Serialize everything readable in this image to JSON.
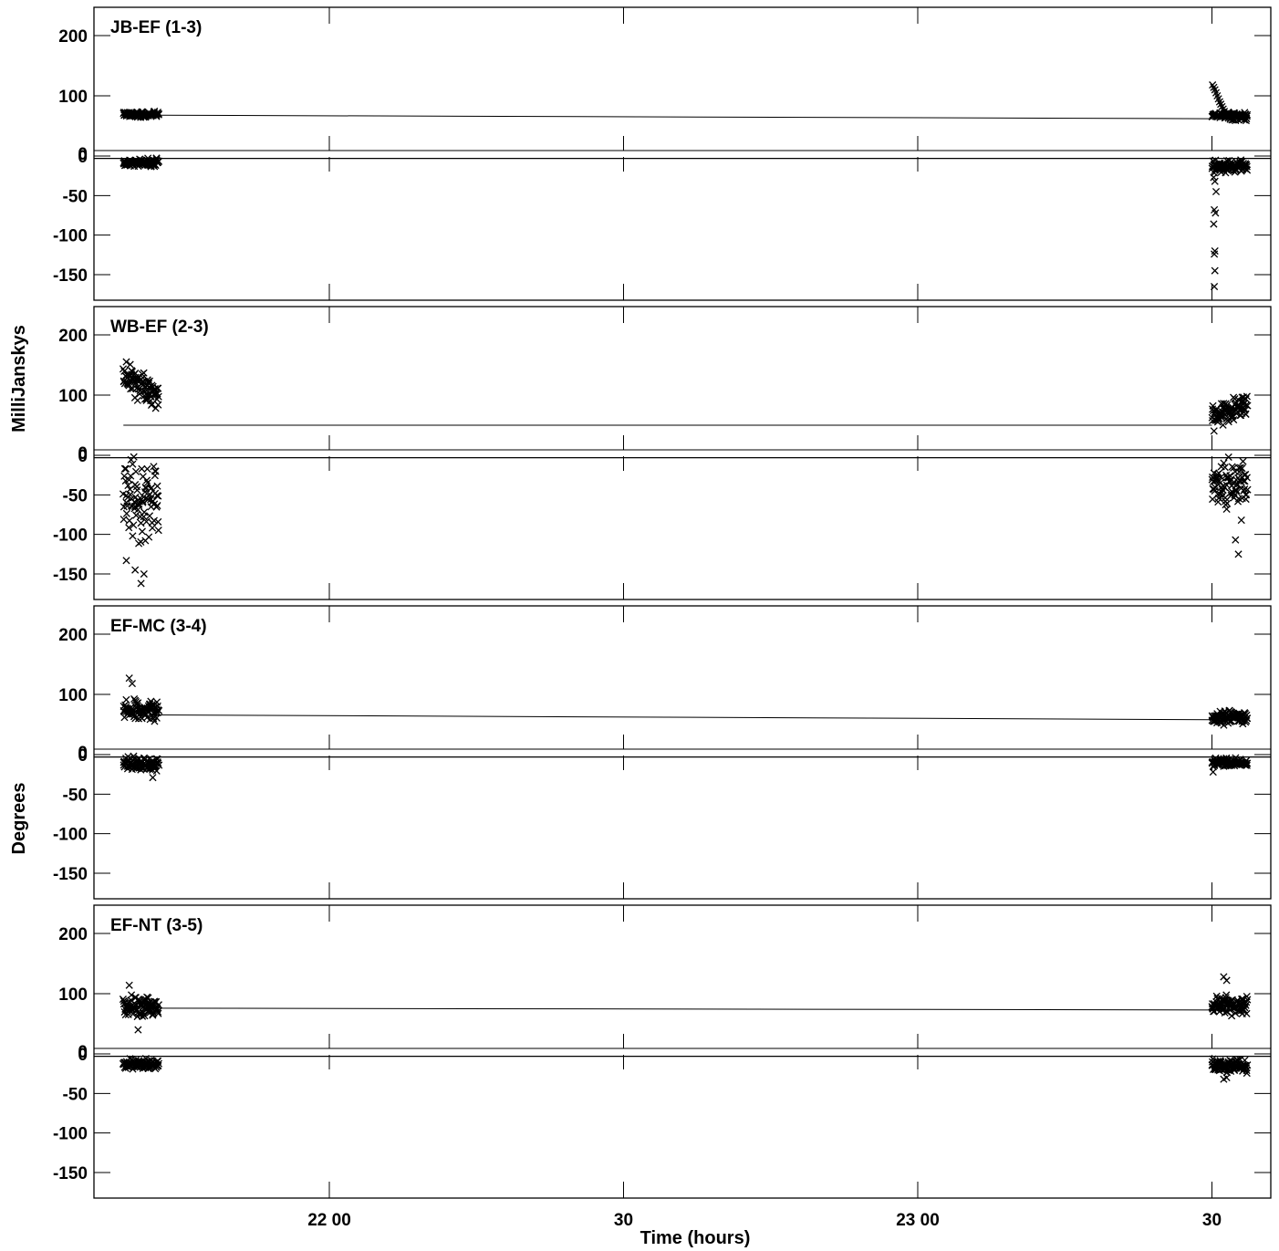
{
  "chart_data": {
    "type": "scatter",
    "x_axis": {
      "label": "Time (hours)",
      "unit": "hours",
      "range": [
        21.6,
        23.6
      ],
      "ticks": [
        {
          "value": 22.0,
          "label": "22 00"
        },
        {
          "value": 22.5,
          "label": "30"
        },
        {
          "value": 23.0,
          "label": "23 00"
        },
        {
          "value": 23.5,
          "label": "30"
        }
      ]
    },
    "y_labels": {
      "amplitude": "MilliJanskys",
      "phase": "Degrees"
    },
    "amplitude_ticks": [
      {
        "value": 0,
        "label": "0"
      },
      {
        "value": 100,
        "label": "100"
      },
      {
        "value": 200,
        "label": "200"
      }
    ],
    "phase_ticks": [
      {
        "value": 0,
        "label": "0"
      },
      {
        "value": -50,
        "label": "-50"
      },
      {
        "value": -100,
        "label": "-100"
      },
      {
        "value": -150,
        "label": "-150"
      }
    ],
    "panels": [
      {
        "label": "JB-EF (1-3)",
        "model_amplitude": [
          [
            21.65,
            68
          ],
          [
            23.5,
            62
          ]
        ],
        "model_phase": [
          [
            21.6,
            -3
          ],
          [
            23.6,
            -3
          ]
        ],
        "scan1": {
          "x": [
            21.65,
            21.71
          ],
          "amp": {
            "mean": 69,
            "spread": 4,
            "trend": 0
          },
          "phase": {
            "mean": -9,
            "spread": 4,
            "extra": []
          }
        },
        "scan2": {
          "x": [
            23.5,
            23.56
          ],
          "amp": {
            "mean": 68,
            "spread": 4,
            "trend": 0
          },
          "amp_extra": [
            [
              23.501,
              118
            ],
            [
              23.503,
              114
            ],
            [
              23.505,
              110
            ],
            [
              23.507,
              105
            ],
            [
              23.509,
              100
            ],
            [
              23.511,
              95
            ],
            [
              23.513,
              90
            ],
            [
              23.515,
              86
            ],
            [
              23.517,
              82
            ],
            [
              23.519,
              78
            ],
            [
              23.521,
              74
            ],
            [
              23.523,
              70
            ],
            [
              23.525,
              66
            ],
            [
              23.528,
              63
            ],
            [
              23.531,
              61
            ],
            [
              23.534,
              60
            ],
            [
              23.537,
              60
            ],
            [
              23.54,
              59
            ],
            [
              23.545,
              60
            ],
            [
              23.55,
              61
            ],
            [
              23.555,
              60
            ],
            [
              23.558,
              59
            ]
          ],
          "phase": {
            "mean": -13,
            "spread": 6,
            "extra": [
              [
                23.503,
                -27
              ],
              [
                23.505,
                -32
              ],
              [
                23.507,
                -45
              ],
              [
                23.504,
                -68
              ],
              [
                23.506,
                -72
              ],
              [
                23.503,
                -86
              ],
              [
                23.505,
                -120
              ],
              [
                23.504,
                -124
              ],
              [
                23.505,
                -145
              ],
              [
                23.504,
                -165
              ]
            ]
          }
        }
      },
      {
        "label": "WB-EF (2-3)",
        "model_amplitude": [
          [
            21.65,
            50
          ],
          [
            23.5,
            50
          ]
        ],
        "model_phase": [
          [
            21.6,
            -3
          ],
          [
            23.6,
            -3
          ]
        ],
        "scan1": {
          "x": [
            21.65,
            21.71
          ],
          "amp": {
            "mean": 115,
            "spread": 22,
            "trend": -40
          },
          "phase": {
            "mean": -55,
            "spread": 45,
            "extra": [
              [
                21.68,
                -162
              ],
              [
                21.67,
                -145
              ],
              [
                21.685,
                -150
              ],
              [
                21.655,
                -133
              ]
            ]
          }
        },
        "scan2": {
          "x": [
            23.5,
            23.56
          ],
          "amp": {
            "mean": 72,
            "spread": 18,
            "trend": 15
          },
          "phase": {
            "mean": -35,
            "spread": 22,
            "extra": [
              [
                23.55,
                -82
              ],
              [
                23.54,
                -107
              ],
              [
                23.545,
                -125
              ],
              [
                23.525,
                -68
              ]
            ]
          }
        }
      },
      {
        "label": "EF-MC (3-4)",
        "model_amplitude": [
          [
            21.7,
            66
          ],
          [
            23.5,
            58
          ]
        ],
        "model_phase": [
          [
            21.6,
            -3
          ],
          [
            23.6,
            -3
          ]
        ],
        "scan1": {
          "x": [
            21.65,
            21.71
          ],
          "amp": {
            "mean": 73,
            "spread": 14,
            "trend": 0
          },
          "amp_extra": [
            [
              21.66,
              127
            ],
            [
              21.665,
              118
            ]
          ],
          "phase": {
            "mean": -12,
            "spread": 8,
            "extra": [
              [
                21.7,
                -29
              ]
            ]
          }
        },
        "scan2": {
          "x": [
            23.5,
            23.56
          ],
          "amp": {
            "mean": 62,
            "spread": 9,
            "trend": 0
          },
          "phase": {
            "mean": -10,
            "spread": 5,
            "extra": [
              [
                23.502,
                -22
              ]
            ]
          }
        }
      },
      {
        "label": "EF-NT (3-5)",
        "model_amplitude": [
          [
            21.65,
            76
          ],
          [
            23.5,
            73
          ]
        ],
        "model_phase": [
          [
            21.6,
            -3
          ],
          [
            23.6,
            -3
          ]
        ],
        "scan1": {
          "x": [
            21.65,
            21.71
          ],
          "amp": {
            "mean": 80,
            "spread": 14,
            "trend": 0
          },
          "amp_extra": [
            [
              21.66,
              114
            ],
            [
              21.675,
              40
            ]
          ],
          "phase": {
            "mean": -13,
            "spread": 5,
            "extra": []
          }
        },
        "scan2": {
          "x": [
            23.5,
            23.56
          ],
          "amp": {
            "mean": 80,
            "spread": 15,
            "trend": 0
          },
          "amp_extra": [
            [
              23.52,
              128
            ],
            [
              23.525,
              122
            ]
          ],
          "phase": {
            "mean": -15,
            "spread": 7,
            "extra": [
              [
                23.52,
                -32
              ],
              [
                23.525,
                -30
              ]
            ]
          }
        }
      }
    ]
  }
}
